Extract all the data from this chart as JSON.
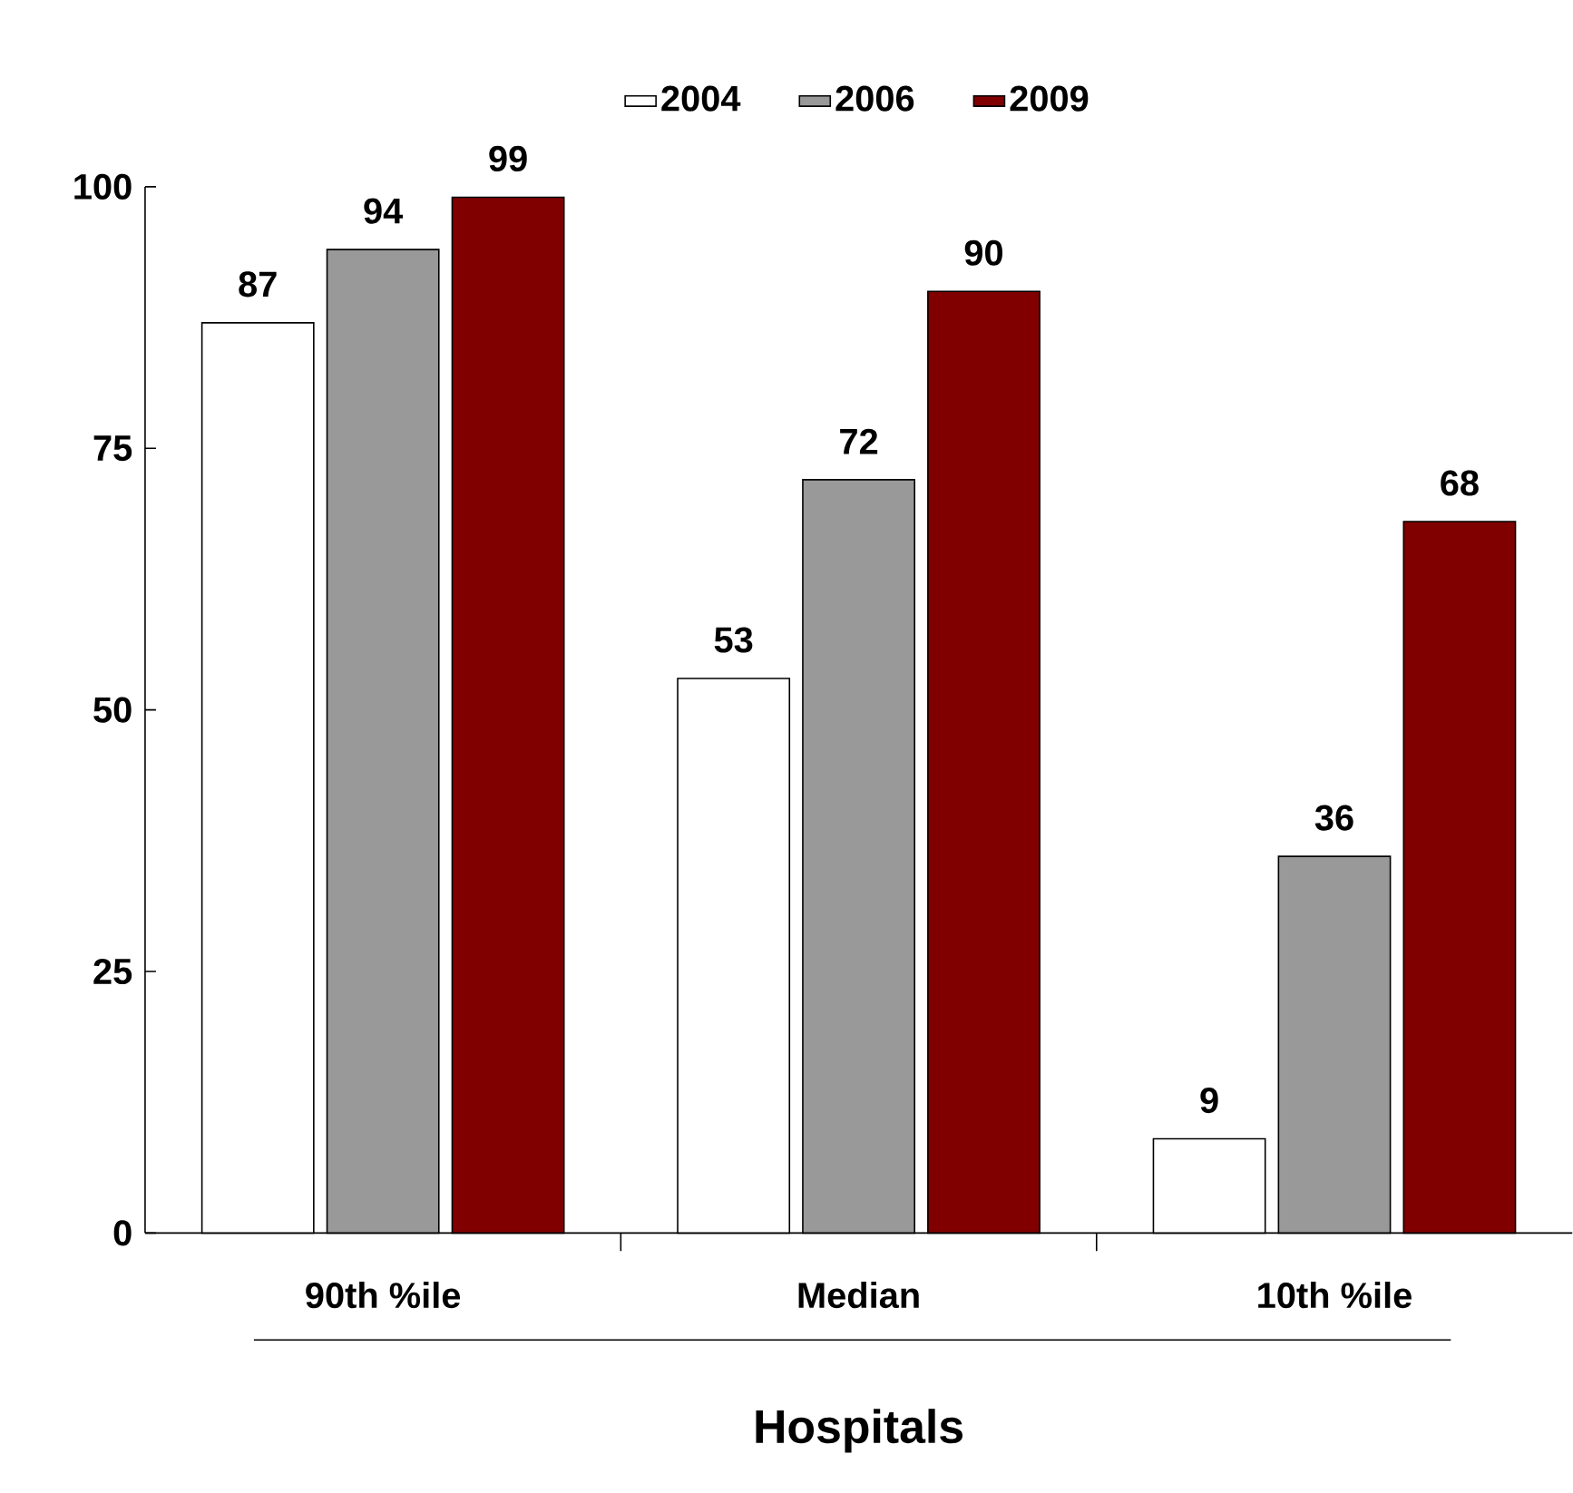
{
  "chart_data": {
    "type": "bar",
    "xlabel": "Hospitals",
    "categories": [
      "90th %ile",
      "Median",
      "10th %ile"
    ],
    "series": [
      {
        "name": "2004",
        "color": "#ffffff",
        "values": [
          87,
          53,
          9
        ]
      },
      {
        "name": "2006",
        "color": "#999999",
        "values": [
          94,
          72,
          36
        ]
      },
      {
        "name": "2009",
        "color": "#800000",
        "values": [
          99,
          90,
          68
        ]
      }
    ],
    "ylim": [
      0,
      100
    ],
    "yticks": [
      0,
      25,
      50,
      75,
      100
    ],
    "grid": false,
    "legend": "top",
    "data_labels": true
  }
}
